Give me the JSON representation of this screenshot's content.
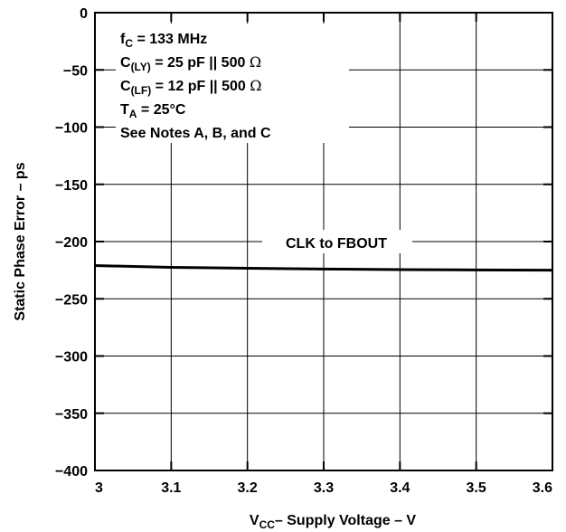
{
  "chart_data": {
    "type": "line",
    "title": "",
    "xlabel": "– Supply Voltage – V",
    "xlabel_symbol": "V",
    "xlabel_symbol_sub": "CC",
    "ylabel": "Static Phase Error – ps",
    "xlim": [
      3,
      3.6
    ],
    "ylim": [
      -400,
      0
    ],
    "xticks": [
      "3",
      "3.1",
      "3.2",
      "3.3",
      "3.4",
      "3.5",
      "3.6"
    ],
    "yticks": [
      "0",
      "−50",
      "−100",
      "−150",
      "−200",
      "−250",
      "−300",
      "−350",
      "−400"
    ],
    "grid": true,
    "series": [
      {
        "name": "CLK to FBOUT",
        "color": "#000000",
        "x": [
          3.0,
          3.1,
          3.2,
          3.3,
          3.4,
          3.5,
          3.6
        ],
        "y": [
          -221,
          -222.5,
          -223.3,
          -224,
          -224.5,
          -224.8,
          -225
        ]
      }
    ],
    "annotations": {
      "line1_main": "f",
      "line1_sub": "C",
      "line1_rest": " = 133 MHz",
      "line2_main": "C",
      "line2_sub": "(LY)",
      "line2_rest": " = 25 pF || 500 ",
      "line3_main": "C",
      "line3_sub": "(LF)",
      "line3_rest": " = 12 pF || 500 ",
      "ohm": "Ω",
      "line4_main": "T",
      "line4_sub": "A",
      "line4_rest": " = 25°C",
      "line5": "See Notes A, B, and C"
    }
  }
}
